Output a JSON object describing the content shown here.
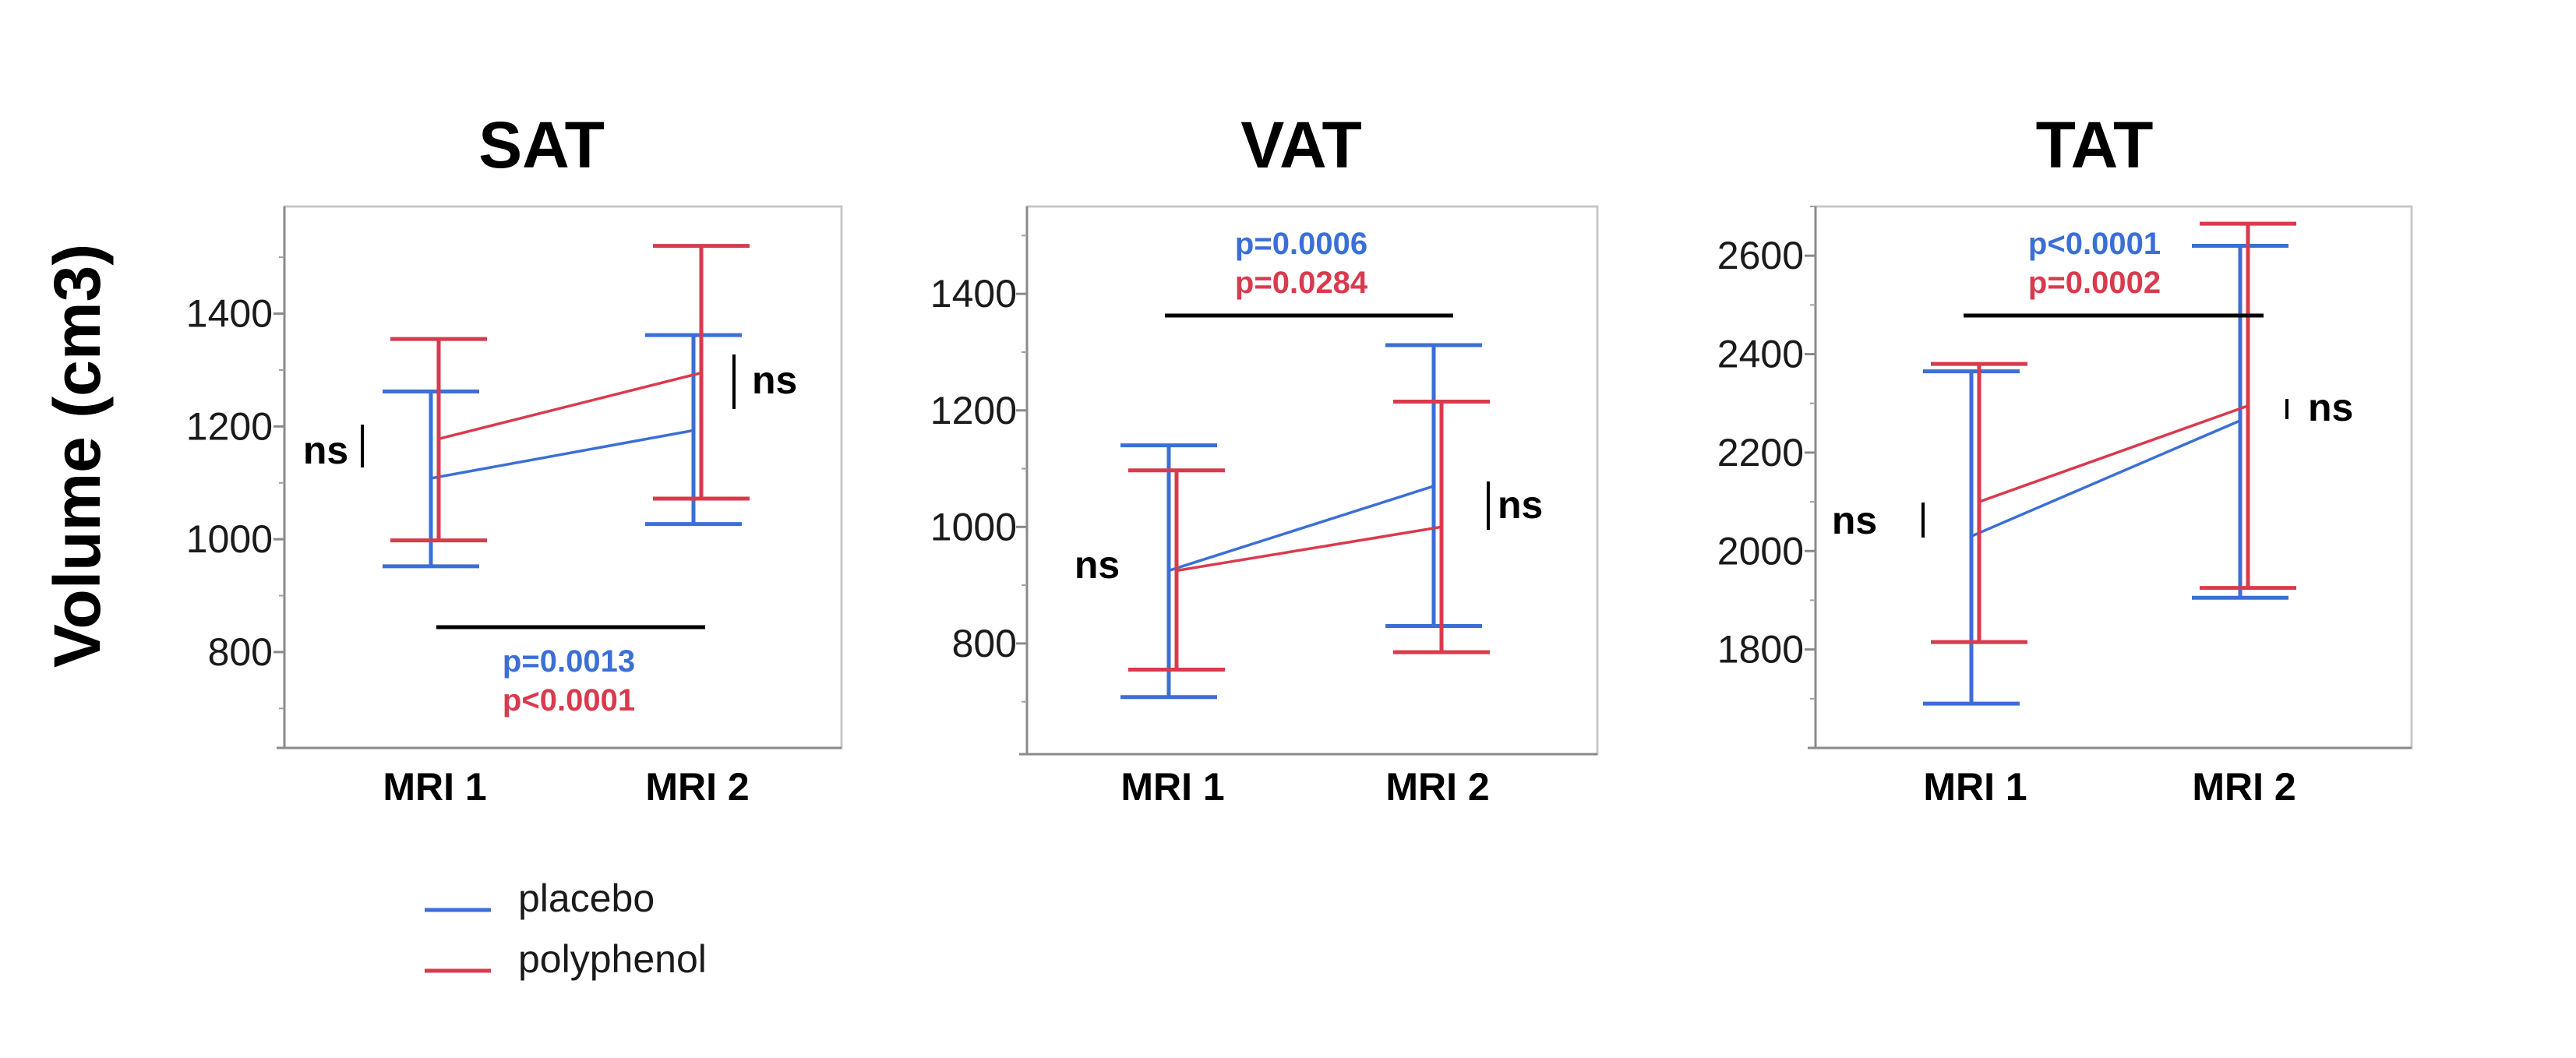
{
  "y_axis_label": "Volume (cm3)",
  "colors": {
    "placebo": "#3b6fd6",
    "polyphenol": "#d93a4d"
  },
  "legend": {
    "items": [
      {
        "label": "placebo",
        "color": "#3b6fd6"
      },
      {
        "label": "polyphenol",
        "color": "#d93a4d"
      }
    ]
  },
  "chart_data": [
    {
      "type": "line",
      "title": "SAT",
      "categories": [
        "MRI 1",
        "MRI 2"
      ],
      "yticks": [
        800,
        1000,
        1200,
        1400
      ],
      "ylim": [
        630,
        1590
      ],
      "series": [
        {
          "name": "placebo",
          "values": [
            1108,
            1193
          ],
          "error_low": [
            952,
            1027
          ],
          "error_high": [
            1262,
            1362
          ]
        },
        {
          "name": "polyphenol",
          "values": [
            1178,
            1295
          ],
          "error_low": [
            998,
            1072
          ],
          "error_high": [
            1355,
            1520
          ]
        }
      ],
      "annotations": {
        "ns_mri1": "ns",
        "ns_mri2": "ns",
        "p_placebo": "p=0.0013",
        "p_polyphenol": "p<0.0001"
      }
    },
    {
      "type": "line",
      "title": "VAT",
      "categories": [
        "MRI 1",
        "MRI 2"
      ],
      "yticks": [
        800,
        1000,
        1200,
        1400
      ],
      "ylim": [
        610,
        1550
      ],
      "series": [
        {
          "name": "placebo",
          "values": [
            925,
            1070
          ],
          "error_low": [
            708,
            830
          ],
          "error_high": [
            1140,
            1312
          ]
        },
        {
          "name": "polyphenol",
          "values": [
            925,
            1000
          ],
          "error_low": [
            755,
            785
          ],
          "error_high": [
            1097,
            1215
          ]
        }
      ],
      "annotations": {
        "ns_mri1": "ns",
        "ns_mri2": "ns",
        "p_placebo": "p=0.0006",
        "p_polyphenol": "p=0.0284"
      }
    },
    {
      "type": "line",
      "title": "TAT",
      "categories": [
        "MRI 1",
        "MRI 2"
      ],
      "yticks": [
        1800,
        2000,
        2200,
        2400,
        2600
      ],
      "ylim": [
        1600,
        2700
      ],
      "series": [
        {
          "name": "placebo",
          "values": [
            2030,
            2265
          ],
          "error_low": [
            1690,
            1905
          ],
          "error_high": [
            2365,
            2620
          ]
        },
        {
          "name": "polyphenol",
          "values": [
            2100,
            2295
          ],
          "error_low": [
            1815,
            1925
          ],
          "error_high": [
            2380,
            2665
          ]
        }
      ],
      "annotations": {
        "ns_mri1": "ns",
        "ns_mri2": "ns",
        "p_placebo": "p<0.0001",
        "p_polyphenol": "p=0.0002"
      }
    }
  ]
}
